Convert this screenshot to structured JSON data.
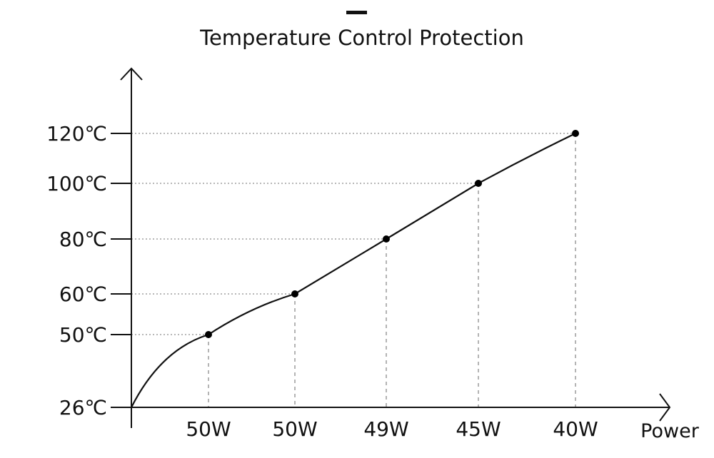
{
  "chart_data": {
    "type": "line",
    "title": "Temperature Control Protection",
    "xlabel": "Power",
    "ylabel": "",
    "categories": [
      "50W",
      "50W",
      "49W",
      "45W",
      "40W"
    ],
    "y_ticks": [
      {
        "value": 26,
        "label": "26℃"
      },
      {
        "value": 50,
        "label": "50℃"
      },
      {
        "value": 60,
        "label": "60℃"
      },
      {
        "value": 80,
        "label": "80℃"
      },
      {
        "value": 100,
        "label": "100℃"
      },
      {
        "value": 120,
        "label": "120℃"
      }
    ],
    "series": [
      {
        "name": "Temperature",
        "start_value": 26,
        "values": [
          50,
          60,
          80,
          100,
          120
        ]
      }
    ],
    "grid": "dashed guide lines at data points",
    "colors": {
      "line": "#111111",
      "grid": "#8c8c8c",
      "point": "#000000",
      "background": "#ffffff"
    }
  }
}
